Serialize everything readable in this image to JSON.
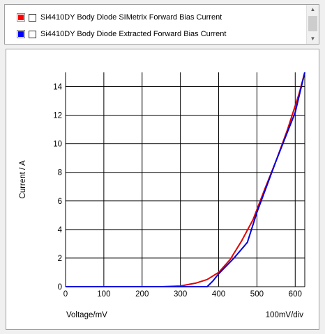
{
  "legend": {
    "items": [
      {
        "label": "Si4410DY Body Diode SIMetrix Forward Bias Current",
        "color": "#ff0000"
      },
      {
        "label": "Si4410DY Body Diode Extracted Forward Bias Current",
        "color": "#0000ff"
      }
    ],
    "scroll_up_icon": "▲",
    "scroll_down_icon": "▼"
  },
  "chart_data": {
    "type": "line",
    "xlabel": "Voltage/mV",
    "ylabel": "Current / A",
    "scale_label": "100mV/div",
    "xlim": [
      0,
      625
    ],
    "ylim": [
      0,
      15
    ],
    "x_ticks": [
      0,
      100,
      200,
      300,
      400,
      500,
      600
    ],
    "y_ticks": [
      0,
      2,
      4,
      6,
      8,
      10,
      12,
      14
    ],
    "grid": true,
    "series": [
      {
        "name": "Si4410DY Body Diode SIMetrix Forward Bias Current",
        "color": "#e00000",
        "points": [
          [
            0,
            0
          ],
          [
            250,
            0
          ],
          [
            300,
            0.05
          ],
          [
            340,
            0.25
          ],
          [
            370,
            0.5
          ],
          [
            400,
            1.0
          ],
          [
            430,
            1.9
          ],
          [
            460,
            3.2
          ],
          [
            490,
            4.7
          ],
          [
            520,
            6.8
          ],
          [
            550,
            8.8
          ],
          [
            580,
            11.0
          ],
          [
            610,
            13.5
          ],
          [
            625,
            15
          ]
        ]
      },
      {
        "name": "Si4410DY Body Diode Extracted Forward Bias Current",
        "color": "#0000e0",
        "points": [
          [
            0,
            0
          ],
          [
            370,
            0
          ],
          [
            385,
            0.4
          ],
          [
            400,
            0.9
          ],
          [
            440,
            2.0
          ],
          [
            475,
            3.1
          ],
          [
            500,
            5.2
          ],
          [
            550,
            8.8
          ],
          [
            600,
            12.2
          ],
          [
            625,
            15
          ]
        ]
      }
    ]
  }
}
